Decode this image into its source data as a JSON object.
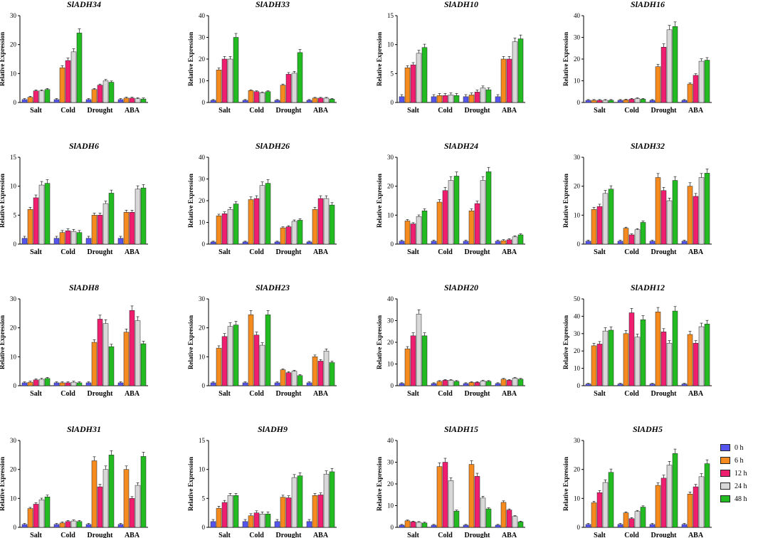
{
  "colors": [
    "#5555ee",
    "#f58a1f",
    "#f01e6e",
    "#d8d8d8",
    "#22bb22"
  ],
  "legend": [
    "0 h",
    "6 h",
    "12 h",
    "24 h",
    "48 h"
  ],
  "chart_data": [
    {
      "type": "bar",
      "title": "SlADH34",
      "ylabel": "Relative Expression",
      "ylim": [
        0,
        30
      ],
      "yticks": [
        0,
        10,
        20,
        30
      ],
      "categories": [
        "Salt",
        "Cold",
        "Drought",
        "ABA"
      ],
      "series": [
        {
          "name": "0 h",
          "values": [
            1,
            1,
            1,
            1
          ]
        },
        {
          "name": "6 h",
          "values": [
            1.8,
            12,
            4.5,
            1.5
          ]
        },
        {
          "name": "12 h",
          "values": [
            4,
            14.5,
            6,
            1.5
          ]
        },
        {
          "name": "24 h",
          "values": [
            4,
            17.5,
            7.5,
            1.3
          ]
        },
        {
          "name": "48 h",
          "values": [
            4.5,
            24,
            7,
            1.2
          ]
        }
      ]
    },
    {
      "type": "bar",
      "title": "SlADH33",
      "ylabel": "Relative Expression",
      "ylim": [
        0,
        40
      ],
      "yticks": [
        0,
        10,
        20,
        30,
        40
      ],
      "categories": [
        "Salt",
        "Cold",
        "Drought",
        "ABA"
      ],
      "series": [
        {
          "name": "0 h",
          "values": [
            1,
            1,
            1,
            1
          ]
        },
        {
          "name": "6 h",
          "values": [
            15,
            5.5,
            8,
            2
          ]
        },
        {
          "name": "12 h",
          "values": [
            20,
            5,
            13,
            2
          ]
        },
        {
          "name": "24 h",
          "values": [
            20,
            4.5,
            13.5,
            2
          ]
        },
        {
          "name": "48 h",
          "values": [
            30,
            5,
            23,
            1.5
          ]
        }
      ]
    },
    {
      "type": "bar",
      "title": "SlADH10",
      "ylabel": "Relative Expression",
      "ylim": [
        0,
        15
      ],
      "yticks": [
        0,
        5,
        10,
        15
      ],
      "categories": [
        "Salt",
        "Cold",
        "Drought",
        "ABA"
      ],
      "series": [
        {
          "name": "0 h",
          "values": [
            1,
            1,
            1,
            1
          ]
        },
        {
          "name": "6 h",
          "values": [
            6,
            1.2,
            1.3,
            7.5
          ]
        },
        {
          "name": "12 h",
          "values": [
            6.5,
            1.2,
            1.8,
            7.5
          ]
        },
        {
          "name": "24 h",
          "values": [
            8.5,
            1.3,
            2.5,
            10.5
          ]
        },
        {
          "name": "48 h",
          "values": [
            9.5,
            1.2,
            2.2,
            11
          ]
        }
      ]
    },
    {
      "type": "bar",
      "title": "SlADH16",
      "ylabel": "Relative Expression",
      "ylim": [
        0,
        40
      ],
      "yticks": [
        0,
        10,
        20,
        30,
        40
      ],
      "categories": [
        "Salt",
        "Cold",
        "Drought",
        "ABA"
      ],
      "series": [
        {
          "name": "0 h",
          "values": [
            1,
            1,
            1,
            1
          ]
        },
        {
          "name": "6 h",
          "values": [
            1,
            1.2,
            16.5,
            8.5
          ]
        },
        {
          "name": "12 h",
          "values": [
            1,
            1.5,
            25.5,
            12.5
          ]
        },
        {
          "name": "24 h",
          "values": [
            1,
            1.8,
            33.5,
            19
          ]
        },
        {
          "name": "48 h",
          "values": [
            1,
            1.5,
            35,
            19.5
          ]
        }
      ]
    },
    {
      "type": "bar",
      "title": "SlADH6",
      "ylabel": "Relative Expression",
      "ylim": [
        0,
        15
      ],
      "yticks": [
        0,
        5,
        10,
        15
      ],
      "categories": [
        "Salt",
        "Cold",
        "Drought",
        "ABA"
      ],
      "series": [
        {
          "name": "0 h",
          "values": [
            1,
            1,
            1,
            1
          ]
        },
        {
          "name": "6 h",
          "values": [
            6,
            2,
            5,
            5.5
          ]
        },
        {
          "name": "12 h",
          "values": [
            8,
            2.3,
            5,
            5.5
          ]
        },
        {
          "name": "24 h",
          "values": [
            10.2,
            2.2,
            7,
            9.5
          ]
        },
        {
          "name": "48 h",
          "values": [
            10.5,
            2,
            8.8,
            9.7
          ]
        }
      ]
    },
    {
      "type": "bar",
      "title": "SlADH26",
      "ylabel": "Relative Expression",
      "ylim": [
        0,
        40
      ],
      "yticks": [
        0,
        10,
        20,
        30,
        40
      ],
      "categories": [
        "Salt",
        "Cold",
        "Drought",
        "ABA"
      ],
      "series": [
        {
          "name": "0 h",
          "values": [
            1,
            1,
            1,
            1
          ]
        },
        {
          "name": "6 h",
          "values": [
            13,
            20.5,
            7.5,
            16
          ]
        },
        {
          "name": "12 h",
          "values": [
            14,
            21,
            8,
            21
          ]
        },
        {
          "name": "24 h",
          "values": [
            16,
            27,
            10.5,
            21
          ]
        },
        {
          "name": "48 h",
          "values": [
            18.5,
            28,
            11,
            18
          ]
        }
      ]
    },
    {
      "type": "bar",
      "title": "SlADH24",
      "ylabel": "Relative Expression",
      "ylim": [
        0,
        30
      ],
      "yticks": [
        0,
        10,
        20,
        30
      ],
      "categories": [
        "Salt",
        "Cold",
        "Drought",
        "ABA"
      ],
      "series": [
        {
          "name": "0 h",
          "values": [
            1,
            1,
            1,
            1
          ]
        },
        {
          "name": "6 h",
          "values": [
            8,
            14.5,
            11.5,
            1.2
          ]
        },
        {
          "name": "12 h",
          "values": [
            7,
            18.5,
            14,
            1.5
          ]
        },
        {
          "name": "24 h",
          "values": [
            9.5,
            22,
            22,
            2.5
          ]
        },
        {
          "name": "48 h",
          "values": [
            11.5,
            23.5,
            25,
            3.2
          ]
        }
      ]
    },
    {
      "type": "bar",
      "title": "SlADH32",
      "ylabel": "Relative Expression",
      "ylim": [
        0,
        30
      ],
      "yticks": [
        0,
        10,
        20,
        30
      ],
      "categories": [
        "Salt",
        "Cold",
        "Drought",
        "ABA"
      ],
      "series": [
        {
          "name": "0 h",
          "values": [
            1,
            1,
            1,
            1
          ]
        },
        {
          "name": "6 h",
          "values": [
            12,
            5.5,
            23,
            20
          ]
        },
        {
          "name": "12 h",
          "values": [
            13,
            3.2,
            18.5,
            16.5
          ]
        },
        {
          "name": "24 h",
          "values": [
            17.5,
            5,
            15,
            23
          ]
        },
        {
          "name": "48 h",
          "values": [
            19,
            7.5,
            22,
            24.5
          ]
        }
      ]
    },
    {
      "type": "bar",
      "title": "SlADH8",
      "ylabel": "Relative Expression",
      "ylim": [
        0,
        30
      ],
      "yticks": [
        0,
        10,
        20,
        30
      ],
      "categories": [
        "Salt",
        "Cold",
        "Drought",
        "ABA"
      ],
      "series": [
        {
          "name": "0 h",
          "values": [
            1,
            1,
            1,
            1
          ]
        },
        {
          "name": "6 h",
          "values": [
            1.2,
            1,
            15,
            18.5
          ]
        },
        {
          "name": "12 h",
          "values": [
            2,
            1,
            23,
            26
          ]
        },
        {
          "name": "24 h",
          "values": [
            2.2,
            1.2,
            21.5,
            22.5
          ]
        },
        {
          "name": "48 h",
          "values": [
            2.5,
            1,
            13.5,
            14.5
          ]
        }
      ]
    },
    {
      "type": "bar",
      "title": "SlADH23",
      "ylabel": "Relative Expression",
      "ylim": [
        0,
        30
      ],
      "yticks": [
        0,
        10,
        20,
        30
      ],
      "categories": [
        "Salt",
        "Cold",
        "Drought",
        "ABA"
      ],
      "series": [
        {
          "name": "0 h",
          "values": [
            1,
            1,
            1,
            1
          ]
        },
        {
          "name": "6 h",
          "values": [
            13,
            24.5,
            5.5,
            10
          ]
        },
        {
          "name": "12 h",
          "values": [
            17,
            17.5,
            4.5,
            8.5
          ]
        },
        {
          "name": "24 h",
          "values": [
            20.5,
            14,
            5,
            12
          ]
        },
        {
          "name": "48 h",
          "values": [
            21,
            24.5,
            3.5,
            8
          ]
        }
      ]
    },
    {
      "type": "bar",
      "title": "SlADH20",
      "ylabel": "Relative Expression",
      "ylim": [
        0,
        40
      ],
      "yticks": [
        0,
        10,
        20,
        30,
        40
      ],
      "categories": [
        "Salt",
        "Cold",
        "Drought",
        "ABA"
      ],
      "series": [
        {
          "name": "0 h",
          "values": [
            1,
            1,
            1,
            1
          ]
        },
        {
          "name": "6 h",
          "values": [
            17,
            2,
            1.5,
            3
          ]
        },
        {
          "name": "12 h",
          "values": [
            23,
            2.5,
            1.5,
            2.5
          ]
        },
        {
          "name": "24 h",
          "values": [
            33,
            2.5,
            2.2,
            3.5
          ]
        },
        {
          "name": "48 h",
          "values": [
            23,
            2,
            2,
            3
          ]
        }
      ]
    },
    {
      "type": "bar",
      "title": "SlADH12",
      "ylabel": "Relative Expression",
      "ylim": [
        0,
        50
      ],
      "yticks": [
        0,
        10,
        20,
        30,
        40,
        50
      ],
      "categories": [
        "Salt",
        "Cold",
        "Drought",
        "ABA"
      ],
      "series": [
        {
          "name": "0 h",
          "values": [
            1,
            1,
            1,
            1
          ]
        },
        {
          "name": "6 h",
          "values": [
            23,
            30,
            42.5,
            29.5
          ]
        },
        {
          "name": "12 h",
          "values": [
            24,
            42,
            31,
            24.5
          ]
        },
        {
          "name": "24 h",
          "values": [
            31.5,
            28,
            24.5,
            34
          ]
        },
        {
          "name": "48 h",
          "values": [
            32,
            38,
            43,
            35.5
          ]
        }
      ]
    },
    {
      "type": "bar",
      "title": "SlADH31",
      "ylabel": "Relative Expression",
      "ylim": [
        0,
        30
      ],
      "yticks": [
        0,
        10,
        20,
        30
      ],
      "categories": [
        "Salt",
        "Cold",
        "Drought",
        "ABA"
      ],
      "series": [
        {
          "name": "0 h",
          "values": [
            1,
            1,
            1,
            1
          ]
        },
        {
          "name": "6 h",
          "values": [
            6.5,
            1.5,
            23,
            20
          ]
        },
        {
          "name": "12 h",
          "values": [
            8,
            2,
            14,
            10
          ]
        },
        {
          "name": "24 h",
          "values": [
            9.5,
            2.2,
            20,
            14.5
          ]
        },
        {
          "name": "48 h",
          "values": [
            10.5,
            2,
            25,
            24.5
          ]
        }
      ]
    },
    {
      "type": "bar",
      "title": "SlADH9",
      "ylabel": "Relative Expression",
      "ylim": [
        0,
        15
      ],
      "yticks": [
        0,
        5,
        10,
        15
      ],
      "categories": [
        "Salt",
        "Cold",
        "Drought",
        "ABA"
      ],
      "series": [
        {
          "name": "0 h",
          "values": [
            1,
            1,
            1,
            1
          ]
        },
        {
          "name": "6 h",
          "values": [
            3.3,
            2,
            5.2,
            5.5
          ]
        },
        {
          "name": "12 h",
          "values": [
            4.3,
            2.5,
            5.1,
            5.6
          ]
        },
        {
          "name": "24 h",
          "values": [
            5.5,
            2.3,
            8.6,
            9.2
          ]
        },
        {
          "name": "48 h",
          "values": [
            5.5,
            2.3,
            8.9,
            9.6
          ]
        }
      ]
    },
    {
      "type": "bar",
      "title": "SlADH15",
      "ylabel": "Relative Expression",
      "ylim": [
        0,
        40
      ],
      "yticks": [
        0,
        10,
        20,
        30,
        40
      ],
      "categories": [
        "Salt",
        "Cold",
        "Drought",
        "ABA"
      ],
      "series": [
        {
          "name": "0 h",
          "values": [
            1,
            1,
            1,
            1
          ]
        },
        {
          "name": "6 h",
          "values": [
            3,
            28,
            29,
            11.5
          ]
        },
        {
          "name": "12 h",
          "values": [
            2.5,
            30,
            23.5,
            8
          ]
        },
        {
          "name": "24 h",
          "values": [
            2.3,
            21.5,
            13.5,
            5
          ]
        },
        {
          "name": "48 h",
          "values": [
            2,
            7.5,
            8.5,
            2.5
          ]
        }
      ]
    },
    {
      "type": "bar",
      "title": "SlADH5",
      "ylabel": "Relative Expression",
      "ylim": [
        0,
        30
      ],
      "yticks": [
        0,
        10,
        20,
        30
      ],
      "categories": [
        "Salt",
        "Cold",
        "Drought",
        "ABA"
      ],
      "series": [
        {
          "name": "0 h",
          "values": [
            1,
            1,
            1,
            1
          ]
        },
        {
          "name": "6 h",
          "values": [
            8.5,
            5,
            14.5,
            11.5
          ]
        },
        {
          "name": "12 h",
          "values": [
            12,
            3,
            17,
            14
          ]
        },
        {
          "name": "24 h",
          "values": [
            15.5,
            5.5,
            21.5,
            17.5
          ]
        },
        {
          "name": "48 h",
          "values": [
            19,
            7,
            25.5,
            22
          ]
        }
      ]
    }
  ]
}
